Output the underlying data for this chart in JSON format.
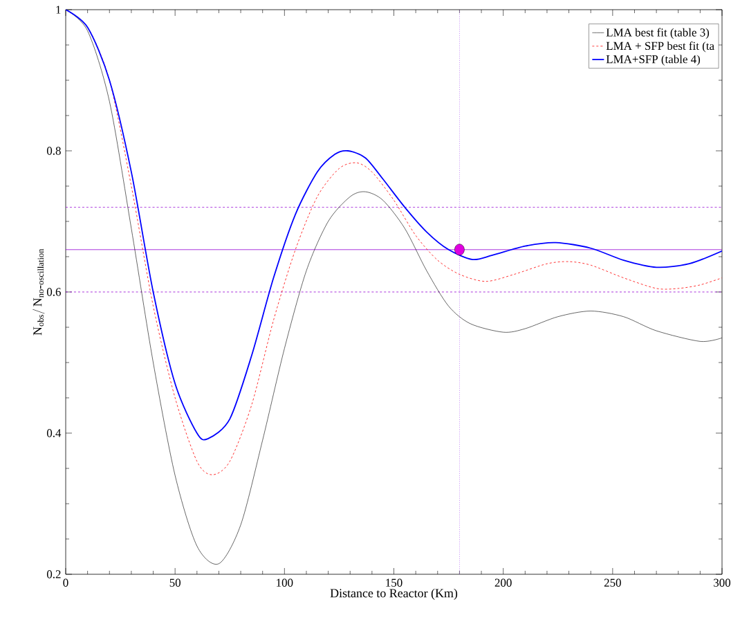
{
  "chart_data": {
    "type": "line",
    "xlabel": "Distance to Reactor (Km)",
    "ylabel": "\\mathrm{N}_{\\mathrm{obs}}/\\, \\mathrm{N}_{\\mathrm{no\\mbox{-}oscillation}}",
    "xlim": [
      0,
      300
    ],
    "ylim": [
      0.2,
      1
    ],
    "xticks": [
      0,
      50,
      100,
      150,
      200,
      250,
      300
    ],
    "yticks": [
      0.2,
      0.4,
      0.6,
      0.8,
      1
    ],
    "grid": false,
    "legend": "top right",
    "marker": "none",
    "series": [
      {
        "name": "LMA best fit (table 3)",
        "color": "#000000",
        "line_style": "solid",
        "x": [
          0,
          10,
          20,
          30,
          40,
          50,
          60,
          70,
          80,
          90,
          100,
          110,
          120,
          130,
          137,
          145,
          155,
          165,
          175,
          185,
          200,
          210,
          225,
          240,
          255,
          270,
          290,
          300
        ],
        "values": [
          1,
          0.97,
          0.87,
          0.69,
          0.5,
          0.34,
          0.24,
          0.215,
          0.27,
          0.39,
          0.52,
          0.63,
          0.7,
          0.735,
          0.742,
          0.73,
          0.69,
          0.63,
          0.58,
          0.555,
          0.543,
          0.548,
          0.565,
          0.573,
          0.565,
          0.545,
          0.53,
          0.535
        ]
      },
      {
        "name": "LMA + SFP best fit (ta",
        "color": "#ff0000",
        "line_style": "dashed",
        "x": [
          0,
          10,
          20,
          30,
          40,
          50,
          60,
          67,
          75,
          85,
          95,
          105,
          115,
          125,
          133,
          140,
          150,
          160,
          170,
          180,
          192,
          205,
          220,
          230,
          240,
          255,
          270,
          280,
          290,
          300
        ],
        "values": [
          1,
          0.975,
          0.9,
          0.75,
          0.58,
          0.45,
          0.36,
          0.341,
          0.36,
          0.44,
          0.56,
          0.66,
          0.735,
          0.775,
          0.783,
          0.77,
          0.73,
          0.68,
          0.645,
          0.625,
          0.615,
          0.625,
          0.64,
          0.643,
          0.638,
          0.62,
          0.605,
          0.605,
          0.61,
          0.62
        ]
      },
      {
        "name": "LMA+SFP (table 4)",
        "color": "#0000ff",
        "line_style": "solid",
        "x": [
          0,
          10,
          20,
          30,
          40,
          50,
          60,
          65,
          75,
          85,
          95,
          105,
          115,
          123,
          129,
          137,
          145,
          155,
          165,
          175,
          186,
          195,
          210,
          224,
          240,
          255,
          270,
          285,
          300
        ],
        "values": [
          1,
          0.975,
          0.9,
          0.77,
          0.6,
          0.47,
          0.4,
          0.392,
          0.42,
          0.51,
          0.62,
          0.71,
          0.77,
          0.795,
          0.8,
          0.79,
          0.76,
          0.72,
          0.685,
          0.66,
          0.646,
          0.652,
          0.665,
          0.67,
          0.662,
          0.645,
          0.635,
          0.64,
          0.658
        ]
      },
      {
        "type": "scatter",
        "marker": "circle",
        "color": "#e000e0",
        "x": [
          180
        ],
        "values": [
          0.66
        ]
      }
    ],
    "ref_lines": [
      {
        "axis": "y",
        "value": 0.72,
        "color": "#9400d3",
        "line_style": "dashed"
      },
      {
        "axis": "y",
        "value": 0.66,
        "color": "#9400d3",
        "line_style": "solid"
      },
      {
        "axis": "y",
        "value": 0.6,
        "color": "#9400d3",
        "line_style": "dashed"
      },
      {
        "axis": "x",
        "value": 180,
        "color": "#a040f0",
        "line_style": "dotted"
      }
    ]
  }
}
